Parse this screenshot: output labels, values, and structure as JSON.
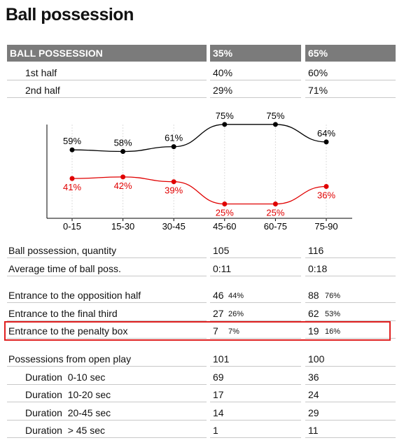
{
  "header": {
    "title": "Ball possession"
  },
  "table": {
    "columns": [
      "BALL POSSESSION",
      "35%",
      "65%"
    ],
    "rows": [
      [
        "1st half",
        "40%",
        "60%"
      ],
      [
        "2nd half",
        "29%",
        "71%"
      ]
    ]
  },
  "chart_data": {
    "type": "line",
    "categories": [
      "0-15",
      "15-30",
      "30-45",
      "45-60",
      "60-75",
      "75-90"
    ],
    "series": [
      {
        "color": "#000000",
        "values": [
          59,
          58,
          61,
          75,
          75,
          64
        ],
        "value_labels": [
          "59%",
          "58%",
          "61%",
          "75%",
          "75%",
          "64%"
        ]
      },
      {
        "color": "#e00000",
        "values": [
          41,
          42,
          39,
          25,
          25,
          36
        ],
        "value_labels": [
          "41%",
          "42%",
          "39%",
          "25%",
          "25%",
          "36%"
        ]
      }
    ],
    "ylim": [
      16,
      78
    ]
  },
  "stats": [
    [
      [
        "Ball possession, quantity",
        "105",
        "116"
      ],
      [
        "Average time of ball poss.",
        "0:11",
        "0:18"
      ]
    ],
    [
      [
        "Entrance to the opposition half",
        "46",
        "44%",
        "88",
        "76%"
      ],
      [
        "Entrance to the final third",
        "27",
        "26%",
        "62",
        "53%"
      ],
      [
        "Entrance to the penalty box",
        "7",
        "7%",
        "19",
        "16%"
      ]
    ],
    [
      [
        "Possessions from open play",
        "101",
        "100"
      ],
      [
        "Duration  0-10 sec",
        "69",
        "36"
      ],
      [
        "Duration  10-20 sec",
        "17",
        "24"
      ],
      [
        "Duration  20-45 sec",
        "14",
        "29"
      ],
      [
        "Duration  > 45 sec",
        "1",
        "11"
      ]
    ]
  ]
}
